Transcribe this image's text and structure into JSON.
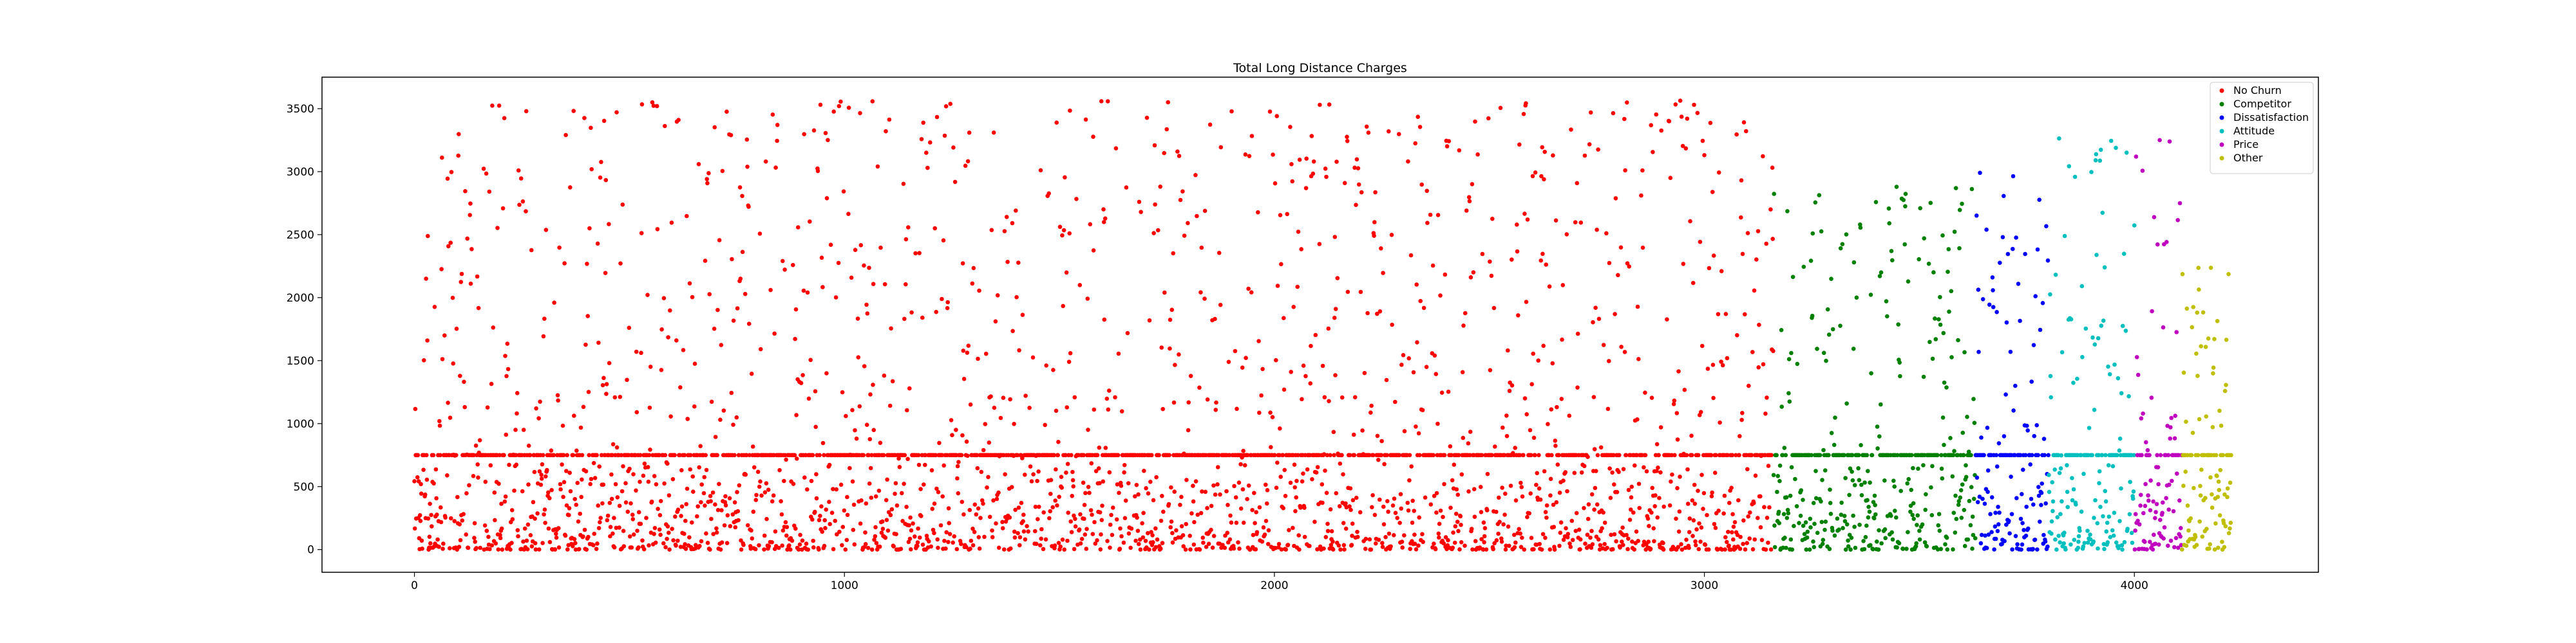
{
  "chart_data": {
    "type": "scatter",
    "title": "Total Long Distance Charges",
    "xlabel": "",
    "ylabel": "",
    "xlim": [
      -215,
      4428
    ],
    "ylim": [
      -180,
      3750
    ],
    "x_ticks": [
      0,
      1000,
      2000,
      3000,
      4000
    ],
    "y_ticks": [
      0,
      500,
      1000,
      1500,
      2000,
      2500,
      3000,
      3500
    ],
    "grid": false,
    "legend_position": "top-right",
    "series": [
      {
        "name": "No Churn",
        "color": "#ff0000",
        "x_range": [
          0,
          3160
        ],
        "count": 3160,
        "median": 750,
        "min": 0,
        "max": 3565,
        "approximate": true
      },
      {
        "name": "Competitor",
        "color": "#008000",
        "x_range": [
          3161,
          3630
        ],
        "count": 470,
        "median": 750,
        "min": 0,
        "max": 2900,
        "approximate": true
      },
      {
        "name": "Dissatisfaction",
        "color": "#0000ff",
        "x_range": [
          3631,
          3800
        ],
        "count": 170,
        "median": 750,
        "min": 0,
        "max": 3210,
        "approximate": true
      },
      {
        "name": "Attitude",
        "color": "#00bfbf",
        "x_range": [
          3801,
          4000
        ],
        "count": 200,
        "median": 750,
        "min": 0,
        "max": 3370,
        "approximate": true
      },
      {
        "name": "Price",
        "color": "#bf00bf",
        "x_range": [
          4001,
          4110
        ],
        "count": 110,
        "median": 750,
        "min": 0,
        "max": 3290,
        "approximate": true
      },
      {
        "name": "Other",
        "color": "#bfbf00",
        "x_range": [
          4111,
          4225
        ],
        "count": 115,
        "median": 750,
        "min": 0,
        "max": 2270,
        "approximate": true
      }
    ]
  }
}
